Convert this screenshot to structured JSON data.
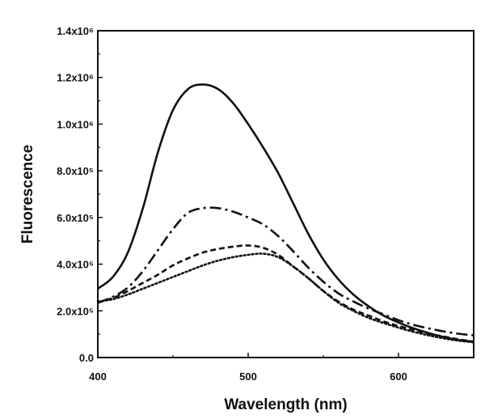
{
  "chart_data": {
    "type": "line",
    "title": "",
    "xlabel": "Wavelength (nm)",
    "ylabel": "Fluorescence",
    "xlim": [
      400,
      650
    ],
    "ylim": [
      0,
      1400000
    ],
    "grid": false,
    "x_ticks": [
      400,
      500,
      600
    ],
    "y_ticks": [
      0,
      200000,
      400000,
      600000,
      800000,
      1000000,
      1200000,
      1400000
    ],
    "y_tick_labels": [
      "0.0",
      "2.0x10⁵",
      "4.0x10⁵",
      "6.0x10⁵",
      "8.0x10⁵",
      "1.0x10⁶",
      "1.2x10⁶",
      "1.4x10⁶"
    ],
    "x": [
      400,
      410,
      420,
      430,
      440,
      450,
      460,
      470,
      480,
      490,
      500,
      510,
      520,
      530,
      540,
      550,
      560,
      570,
      580,
      590,
      600,
      610,
      620,
      630,
      640,
      650
    ],
    "series": [
      {
        "style": "solid",
        "values": [
          295000,
          345000,
          450000,
          640000,
          880000,
          1060000,
          1150000,
          1170000,
          1150000,
          1090000,
          1000000,
          900000,
          790000,
          660000,
          530000,
          420000,
          335000,
          270000,
          220000,
          180000,
          150000,
          125000,
          105000,
          88000,
          75000,
          68000
        ]
      },
      {
        "style": "dash-dot",
        "values": [
          235000,
          260000,
          300000,
          370000,
          460000,
          550000,
          620000,
          640000,
          640000,
          625000,
          600000,
          570000,
          520000,
          455000,
          385000,
          325000,
          275000,
          240000,
          210000,
          185000,
          160000,
          140000,
          125000,
          112000,
          102000,
          95000
        ]
      },
      {
        "style": "dashed",
        "values": [
          235000,
          255000,
          285000,
          320000,
          355000,
          395000,
          425000,
          450000,
          465000,
          475000,
          480000,
          470000,
          440000,
          390000,
          340000,
          285000,
          240000,
          205000,
          180000,
          155000,
          135000,
          118000,
          102000,
          90000,
          78000,
          68000
        ]
      },
      {
        "style": "dotted",
        "values": [
          240000,
          250000,
          270000,
          295000,
          320000,
          345000,
          370000,
          395000,
          415000,
          430000,
          440000,
          445000,
          430000,
          390000,
          340000,
          285000,
          235000,
          200000,
          170000,
          148000,
          128000,
          110000,
          95000,
          82000,
          72000,
          65000
        ]
      }
    ]
  }
}
